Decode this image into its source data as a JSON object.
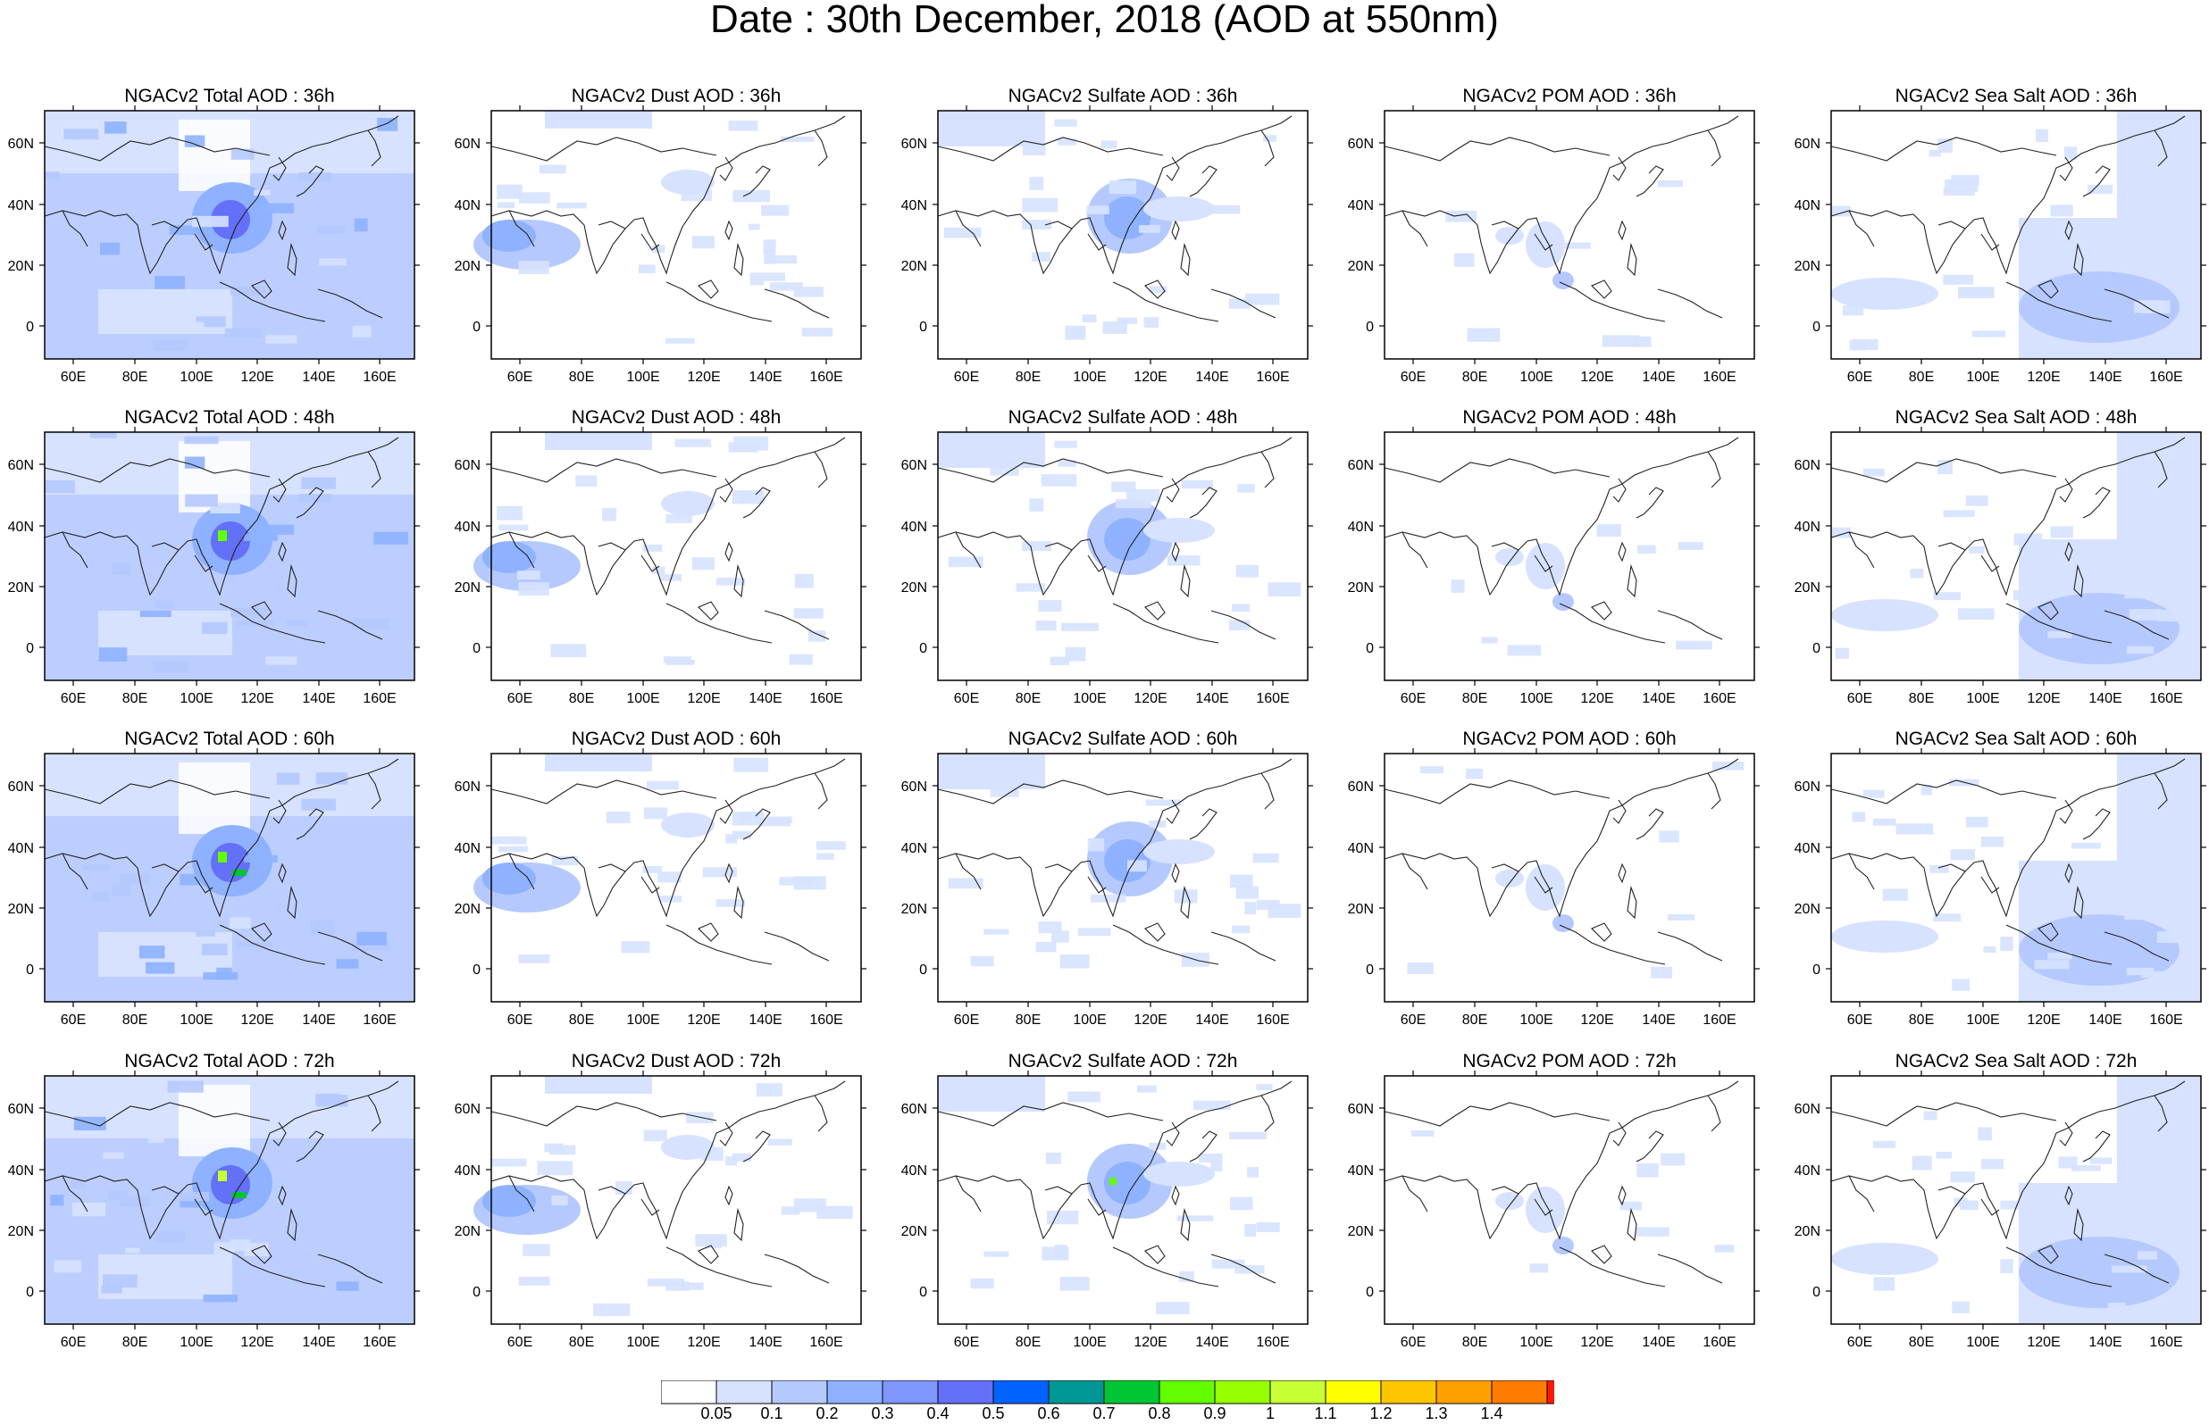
{
  "title": "Date : 30th December, 2018 (AOD at 550nm)",
  "lon_ticks": [
    "60E",
    "80E",
    "100E",
    "120E",
    "140E",
    "160E"
  ],
  "lat_ticks": [
    "60N",
    "40N",
    "20N",
    "0"
  ],
  "panels": [
    [
      "NGACv2 Total AOD : 36h",
      "NGACv2 Dust AOD : 36h",
      "NGACv2 Sulfate AOD : 36h",
      "NGACv2 POM AOD : 36h",
      "NGACv2 Sea Salt AOD : 36h"
    ],
    [
      "NGACv2 Total AOD : 48h",
      "NGACv2 Dust AOD : 48h",
      "NGACv2 Sulfate AOD : 48h",
      "NGACv2 POM AOD : 48h",
      "NGACv2 Sea Salt AOD : 48h"
    ],
    [
      "NGACv2 Total AOD : 60h",
      "NGACv2 Dust AOD : 60h",
      "NGACv2 Sulfate AOD : 60h",
      "NGACv2 POM AOD : 60h",
      "NGACv2 Sea Salt AOD : 60h"
    ],
    [
      "NGACv2 Total AOD : 72h",
      "NGACv2 Dust AOD : 72h",
      "NGACv2 Sulfate AOD : 72h",
      "NGACv2 POM AOD : 72h",
      "NGACv2 Sea Salt  AOD : 72h"
    ]
  ],
  "colorbar": {
    "colors": [
      "#ffffff",
      "#d6e2ff",
      "#b5c9ff",
      "#8eb2ff",
      "#7f96ff",
      "#6370f8",
      "#0063ff",
      "#009696",
      "#00c633",
      "#63ff00",
      "#96ff00",
      "#c6ff33",
      "#ffff00",
      "#ffc600",
      "#ffa000",
      "#ff7c00",
      "#ff1900"
    ],
    "labels": [
      "0.05",
      "0.1",
      "0.2",
      "0.3",
      "0.4",
      "0.5",
      "0.6",
      "0.7",
      "0.8",
      "0.9",
      "1",
      "1.1",
      "1.2",
      "1.3",
      "1.4"
    ]
  }
}
